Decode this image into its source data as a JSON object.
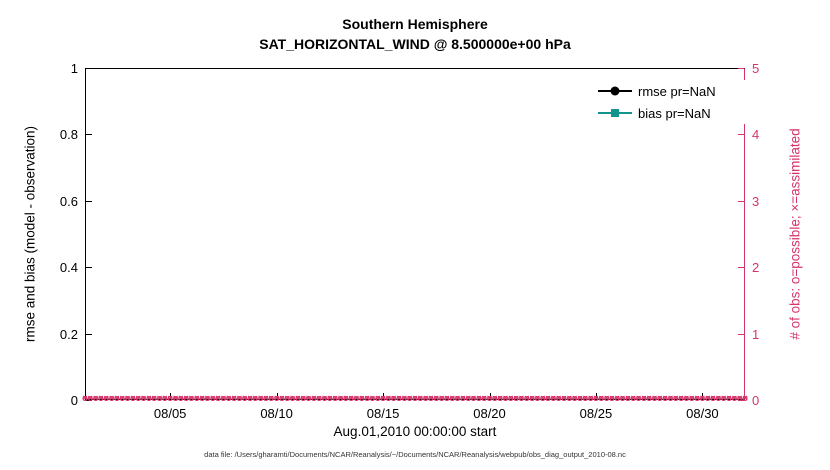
{
  "title": "Southern Hemisphere",
  "subtitle": "SAT_HORIZONTAL_WIND @ 8.500000e+00 hPa",
  "footer": "data file: /Users/gharamti/Documents/NCAR/Reanalysis/~/Documents/NCAR/Reanalysis/webpub/obs_diag_output_2010-08.nc",
  "colors": {
    "right_axis": "#d6336c",
    "rmse": "#000000",
    "bias": "#12948e"
  },
  "legend": {
    "items": [
      {
        "label": "rmse pr=NaN",
        "marker": "circle",
        "color": "#000000"
      },
      {
        "label": "bias pr=NaN",
        "marker": "square",
        "color": "#12948e"
      }
    ]
  },
  "chart_data": {
    "type": "line",
    "title": "Southern Hemisphere",
    "subtitle": "SAT_HORIZONTAL_WIND @ 8.500000e+00 hPa",
    "xlabel": "Aug.01,2010 00:00:00 start",
    "left_axis": {
      "label": "rmse and bias (model - observation)",
      "range": [
        0,
        1
      ],
      "ticks": [
        0,
        0.2,
        0.4,
        0.6,
        0.8,
        1
      ]
    },
    "right_axis": {
      "label": "# of obs: o=possible; ×=assimilated",
      "range": [
        0,
        5
      ],
      "ticks": [
        0,
        1,
        2,
        3,
        4,
        5
      ],
      "color": "#d6336c"
    },
    "x_axis": {
      "range_days": [
        1,
        32
      ],
      "ticks": [
        {
          "label": "08/05",
          "day": 5
        },
        {
          "label": "08/10",
          "day": 10
        },
        {
          "label": "08/15",
          "day": 15
        },
        {
          "label": "08/20",
          "day": 20
        },
        {
          "label": "08/25",
          "day": 25
        },
        {
          "label": "08/30",
          "day": 30
        }
      ]
    },
    "series": [
      {
        "name": "rmse pr=NaN",
        "color": "#000000",
        "marker": "circle",
        "values": null,
        "note": "all NaN, nothing plotted"
      },
      {
        "name": "bias pr=NaN",
        "color": "#12948e",
        "marker": "square",
        "values": null,
        "note": "all NaN, nothing plotted"
      },
      {
        "name": "possible obs",
        "axis": "right",
        "color": "#d6336c",
        "marker": "o",
        "value_constant": 0,
        "count": 125
      },
      {
        "name": "assimilated obs",
        "axis": "right",
        "color": "#d6336c",
        "marker": "×",
        "value_constant": 0,
        "count": 125
      }
    ],
    "grid": false,
    "legend_position": "top-right-inside"
  }
}
